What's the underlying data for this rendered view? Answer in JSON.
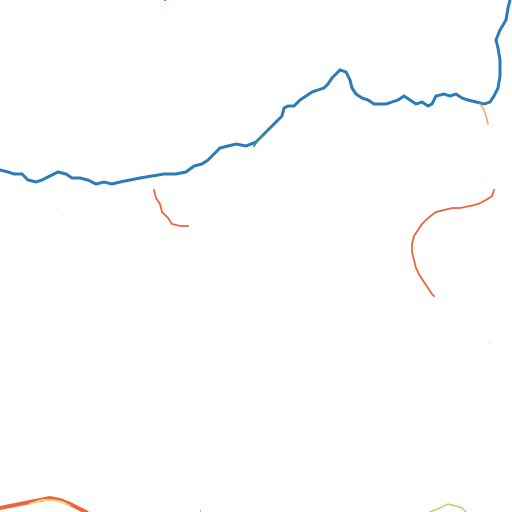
{
  "map": {
    "background": "#ffffff",
    "colors": {
      "river": "#2b7bb9",
      "river_accent": "#3a9a7a",
      "stream_orange": "#e8663a",
      "stream_light": "#f4a262",
      "stream_yellow": "#fdd27a",
      "stream_green": "#a6d96a"
    },
    "features": [
      {
        "name": "main-river",
        "kind": "river"
      },
      {
        "name": "tributary-upper-right",
        "kind": "river"
      },
      {
        "name": "stream-left",
        "kind": "stream"
      },
      {
        "name": "stream-right",
        "kind": "stream"
      },
      {
        "name": "stream-bottom-left",
        "kind": "stream"
      },
      {
        "name": "stream-bottom-right",
        "kind": "stream"
      }
    ]
  }
}
